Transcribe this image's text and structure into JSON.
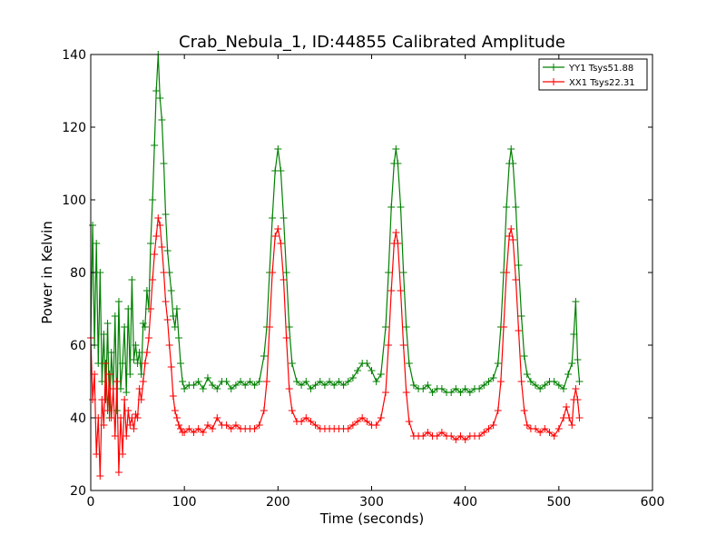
{
  "chart_data": {
    "type": "line",
    "title": "Crab_Nebula_1, ID:44855 Calibrated Amplitude",
    "xlabel": "Time (seconds)",
    "ylabel": "Power in Kelvin",
    "xlim": [
      0,
      600
    ],
    "ylim": [
      20,
      140
    ],
    "xticks": [
      "0",
      "100",
      "200",
      "300",
      "400",
      "500",
      "600"
    ],
    "yticks": [
      "20",
      "40",
      "60",
      "80",
      "100",
      "120",
      "140"
    ],
    "grid": false,
    "legend_position": "top-right",
    "marker": "+",
    "series": [
      {
        "name": "YY1 Tsys51.88",
        "color": "#008000",
        "points": [
          [
            0,
            62
          ],
          [
            2,
            93
          ],
          [
            4,
            60
          ],
          [
            6,
            88
          ],
          [
            8,
            55
          ],
          [
            10,
            80
          ],
          [
            12,
            50
          ],
          [
            14,
            63
          ],
          [
            16,
            45
          ],
          [
            18,
            66
          ],
          [
            20,
            40
          ],
          [
            22,
            58
          ],
          [
            24,
            48
          ],
          [
            26,
            68
          ],
          [
            28,
            42
          ],
          [
            30,
            72
          ],
          [
            32,
            48
          ],
          [
            34,
            55
          ],
          [
            36,
            65
          ],
          [
            38,
            47
          ],
          [
            40,
            70
          ],
          [
            42,
            52
          ],
          [
            44,
            78
          ],
          [
            46,
            56
          ],
          [
            48,
            60
          ],
          [
            50,
            55
          ],
          [
            52,
            58
          ],
          [
            54,
            52
          ],
          [
            56,
            66
          ],
          [
            58,
            65
          ],
          [
            60,
            75
          ],
          [
            62,
            70
          ],
          [
            64,
            88
          ],
          [
            66,
            100
          ],
          [
            68,
            115
          ],
          [
            70,
            130
          ],
          [
            72,
            140
          ],
          [
            74,
            128
          ],
          [
            76,
            122
          ],
          [
            78,
            110
          ],
          [
            80,
            96
          ],
          [
            82,
            86
          ],
          [
            84,
            80
          ],
          [
            86,
            75
          ],
          [
            88,
            68
          ],
          [
            90,
            65
          ],
          [
            92,
            70
          ],
          [
            94,
            62
          ],
          [
            96,
            55
          ],
          [
            98,
            50
          ],
          [
            100,
            48
          ],
          [
            105,
            49
          ],
          [
            110,
            49
          ],
          [
            115,
            50
          ],
          [
            120,
            48
          ],
          [
            125,
            51
          ],
          [
            130,
            49
          ],
          [
            135,
            48
          ],
          [
            140,
            50
          ],
          [
            145,
            50
          ],
          [
            150,
            48
          ],
          [
            155,
            49
          ],
          [
            160,
            50
          ],
          [
            165,
            49
          ],
          [
            170,
            50
          ],
          [
            175,
            49
          ],
          [
            180,
            50
          ],
          [
            185,
            57
          ],
          [
            188,
            65
          ],
          [
            191,
            80
          ],
          [
            194,
            95
          ],
          [
            197,
            108
          ],
          [
            200,
            114
          ],
          [
            203,
            108
          ],
          [
            206,
            95
          ],
          [
            209,
            80
          ],
          [
            212,
            65
          ],
          [
            215,
            55
          ],
          [
            220,
            50
          ],
          [
            225,
            49
          ],
          [
            230,
            50
          ],
          [
            235,
            48
          ],
          [
            240,
            49
          ],
          [
            245,
            50
          ],
          [
            250,
            49
          ],
          [
            255,
            50
          ],
          [
            260,
            49
          ],
          [
            265,
            50
          ],
          [
            270,
            49
          ],
          [
            275,
            50
          ],
          [
            280,
            51
          ],
          [
            285,
            53
          ],
          [
            290,
            55
          ],
          [
            295,
            55
          ],
          [
            300,
            53
          ],
          [
            305,
            50
          ],
          [
            310,
            52
          ],
          [
            315,
            65
          ],
          [
            318,
            80
          ],
          [
            321,
            98
          ],
          [
            324,
            110
          ],
          [
            326,
            114
          ],
          [
            328,
            110
          ],
          [
            331,
            98
          ],
          [
            334,
            80
          ],
          [
            337,
            65
          ],
          [
            340,
            55
          ],
          [
            345,
            49
          ],
          [
            350,
            48
          ],
          [
            355,
            48
          ],
          [
            360,
            49
          ],
          [
            365,
            47
          ],
          [
            370,
            48
          ],
          [
            375,
            48
          ],
          [
            380,
            47
          ],
          [
            385,
            47
          ],
          [
            390,
            48
          ],
          [
            395,
            47
          ],
          [
            400,
            48
          ],
          [
            405,
            47
          ],
          [
            410,
            48
          ],
          [
            415,
            48
          ],
          [
            420,
            49
          ],
          [
            425,
            50
          ],
          [
            430,
            51
          ],
          [
            435,
            55
          ],
          [
            438,
            65
          ],
          [
            441,
            80
          ],
          [
            444,
            98
          ],
          [
            447,
            110
          ],
          [
            449,
            114
          ],
          [
            451,
            110
          ],
          [
            454,
            98
          ],
          [
            457,
            82
          ],
          [
            460,
            68
          ],
          [
            463,
            57
          ],
          [
            466,
            52
          ],
          [
            470,
            50
          ],
          [
            475,
            49
          ],
          [
            480,
            48
          ],
          [
            485,
            49
          ],
          [
            490,
            50
          ],
          [
            495,
            50
          ],
          [
            500,
            49
          ],
          [
            505,
            48
          ],
          [
            510,
            52
          ],
          [
            514,
            55
          ],
          [
            516,
            63
          ],
          [
            518,
            72
          ],
          [
            520,
            56
          ],
          [
            522,
            50
          ]
        ]
      },
      {
        "name": "XX1 Tsys22.31",
        "color": "#ff0000",
        "points": [
          [
            0,
            62
          ],
          [
            2,
            45
          ],
          [
            4,
            52
          ],
          [
            6,
            30
          ],
          [
            8,
            40
          ],
          [
            10,
            24
          ],
          [
            12,
            45
          ],
          [
            14,
            38
          ],
          [
            16,
            55
          ],
          [
            18,
            42
          ],
          [
            20,
            52
          ],
          [
            22,
            40
          ],
          [
            24,
            48
          ],
          [
            26,
            35
          ],
          [
            28,
            50
          ],
          [
            30,
            25
          ],
          [
            32,
            40
          ],
          [
            34,
            30
          ],
          [
            36,
            45
          ],
          [
            38,
            35
          ],
          [
            40,
            42
          ],
          [
            42,
            38
          ],
          [
            44,
            40
          ],
          [
            46,
            37
          ],
          [
            48,
            41
          ],
          [
            50,
            40
          ],
          [
            52,
            48
          ],
          [
            54,
            45
          ],
          [
            56,
            50
          ],
          [
            58,
            55
          ],
          [
            60,
            58
          ],
          [
            62,
            62
          ],
          [
            64,
            70
          ],
          [
            66,
            78
          ],
          [
            68,
            85
          ],
          [
            70,
            90
          ],
          [
            72,
            95
          ],
          [
            74,
            93
          ],
          [
            76,
            87
          ],
          [
            78,
            80
          ],
          [
            80,
            72
          ],
          [
            82,
            67
          ],
          [
            84,
            60
          ],
          [
            86,
            54
          ],
          [
            88,
            46
          ],
          [
            90,
            42
          ],
          [
            92,
            40
          ],
          [
            94,
            38
          ],
          [
            96,
            37
          ],
          [
            98,
            36
          ],
          [
            100,
            36
          ],
          [
            105,
            37
          ],
          [
            110,
            36
          ],
          [
            115,
            37
          ],
          [
            120,
            36
          ],
          [
            125,
            38
          ],
          [
            130,
            37
          ],
          [
            135,
            40
          ],
          [
            140,
            38
          ],
          [
            145,
            38
          ],
          [
            150,
            37
          ],
          [
            155,
            38
          ],
          [
            160,
            37
          ],
          [
            165,
            37
          ],
          [
            170,
            37
          ],
          [
            175,
            37
          ],
          [
            180,
            38
          ],
          [
            185,
            42
          ],
          [
            188,
            50
          ],
          [
            191,
            65
          ],
          [
            194,
            80
          ],
          [
            197,
            90
          ],
          [
            200,
            92
          ],
          [
            203,
            88
          ],
          [
            206,
            78
          ],
          [
            209,
            62
          ],
          [
            212,
            48
          ],
          [
            215,
            42
          ],
          [
            220,
            39
          ],
          [
            225,
            39
          ],
          [
            230,
            40
          ],
          [
            235,
            39
          ],
          [
            240,
            38
          ],
          [
            245,
            37
          ],
          [
            250,
            37
          ],
          [
            255,
            37
          ],
          [
            260,
            37
          ],
          [
            265,
            37
          ],
          [
            270,
            37
          ],
          [
            275,
            37
          ],
          [
            280,
            38
          ],
          [
            285,
            39
          ],
          [
            290,
            40
          ],
          [
            295,
            39
          ],
          [
            300,
            38
          ],
          [
            305,
            38
          ],
          [
            310,
            40
          ],
          [
            315,
            47
          ],
          [
            318,
            60
          ],
          [
            321,
            75
          ],
          [
            324,
            88
          ],
          [
            326,
            91
          ],
          [
            328,
            88
          ],
          [
            331,
            75
          ],
          [
            334,
            60
          ],
          [
            337,
            47
          ],
          [
            340,
            39
          ],
          [
            345,
            35
          ],
          [
            350,
            35
          ],
          [
            355,
            35
          ],
          [
            360,
            36
          ],
          [
            365,
            35
          ],
          [
            370,
            35
          ],
          [
            375,
            36
          ],
          [
            380,
            35
          ],
          [
            385,
            35
          ],
          [
            390,
            34
          ],
          [
            395,
            35
          ],
          [
            400,
            34
          ],
          [
            405,
            35
          ],
          [
            410,
            35
          ],
          [
            415,
            35
          ],
          [
            420,
            36
          ],
          [
            425,
            37
          ],
          [
            430,
            38
          ],
          [
            435,
            42
          ],
          [
            438,
            50
          ],
          [
            441,
            65
          ],
          [
            444,
            80
          ],
          [
            447,
            90
          ],
          [
            449,
            92
          ],
          [
            451,
            89
          ],
          [
            454,
            78
          ],
          [
            457,
            64
          ],
          [
            460,
            50
          ],
          [
            463,
            42
          ],
          [
            466,
            38
          ],
          [
            470,
            37
          ],
          [
            475,
            37
          ],
          [
            480,
            36
          ],
          [
            485,
            37
          ],
          [
            490,
            36
          ],
          [
            495,
            35
          ],
          [
            500,
            37
          ],
          [
            505,
            40
          ],
          [
            508,
            43
          ],
          [
            511,
            40
          ],
          [
            514,
            38
          ],
          [
            516,
            45
          ],
          [
            518,
            48
          ],
          [
            520,
            45
          ],
          [
            522,
            40
          ]
        ]
      }
    ]
  }
}
